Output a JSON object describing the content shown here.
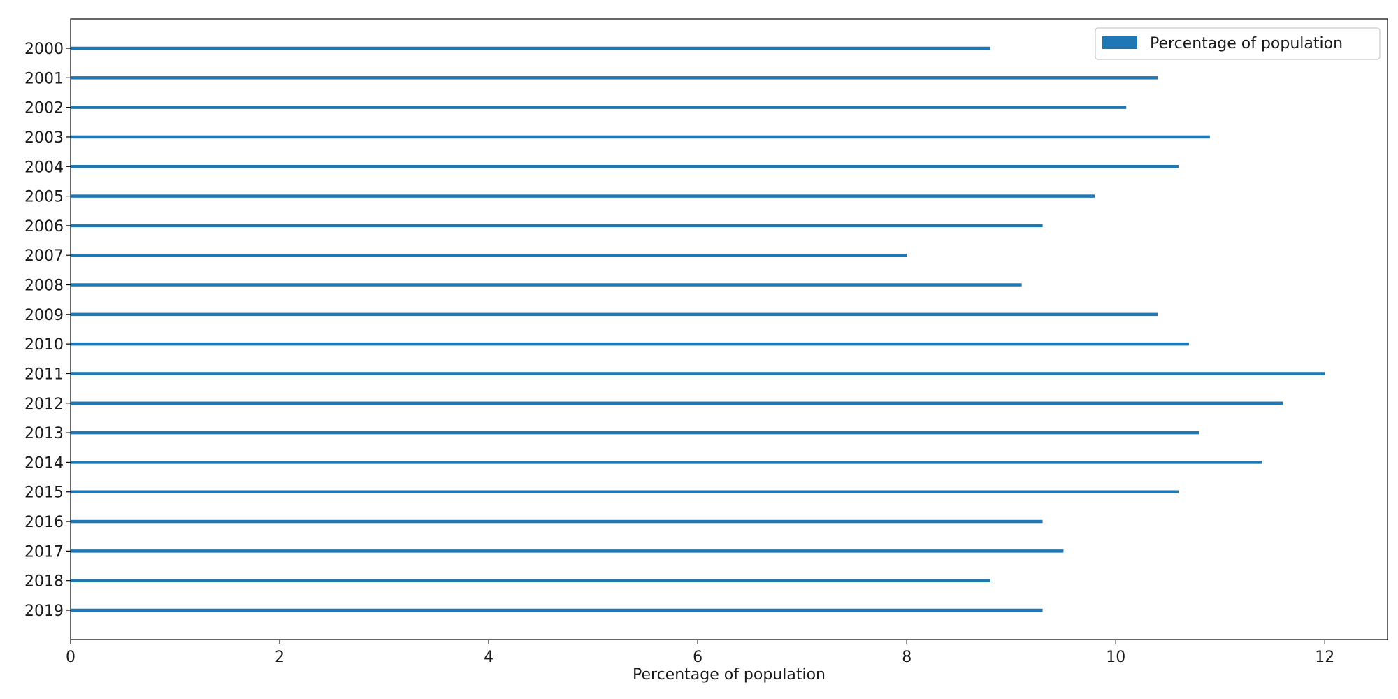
{
  "chart_data": {
    "type": "bar",
    "orientation": "horizontal",
    "categories": [
      "2000",
      "2001",
      "2002",
      "2003",
      "2004",
      "2005",
      "2006",
      "2007",
      "2008",
      "2009",
      "2010",
      "2011",
      "2012",
      "2013",
      "2014",
      "2015",
      "2016",
      "2017",
      "2018",
      "2019"
    ],
    "series": [
      {
        "name": "Percentage of population",
        "color": "#1f77b4",
        "values": [
          8.8,
          10.4,
          10.1,
          10.9,
          10.6,
          9.8,
          9.3,
          8.0,
          9.1,
          10.4,
          10.7,
          12.0,
          11.6,
          10.8,
          11.4,
          10.6,
          9.3,
          9.5,
          8.8,
          9.3
        ]
      }
    ],
    "xlabel": "Percentage of population",
    "ylabel": "",
    "xlim": [
      0,
      12.6
    ],
    "xticks": [
      0,
      2,
      4,
      6,
      8,
      10,
      12
    ],
    "grid": false,
    "legend_position": "top-right"
  }
}
